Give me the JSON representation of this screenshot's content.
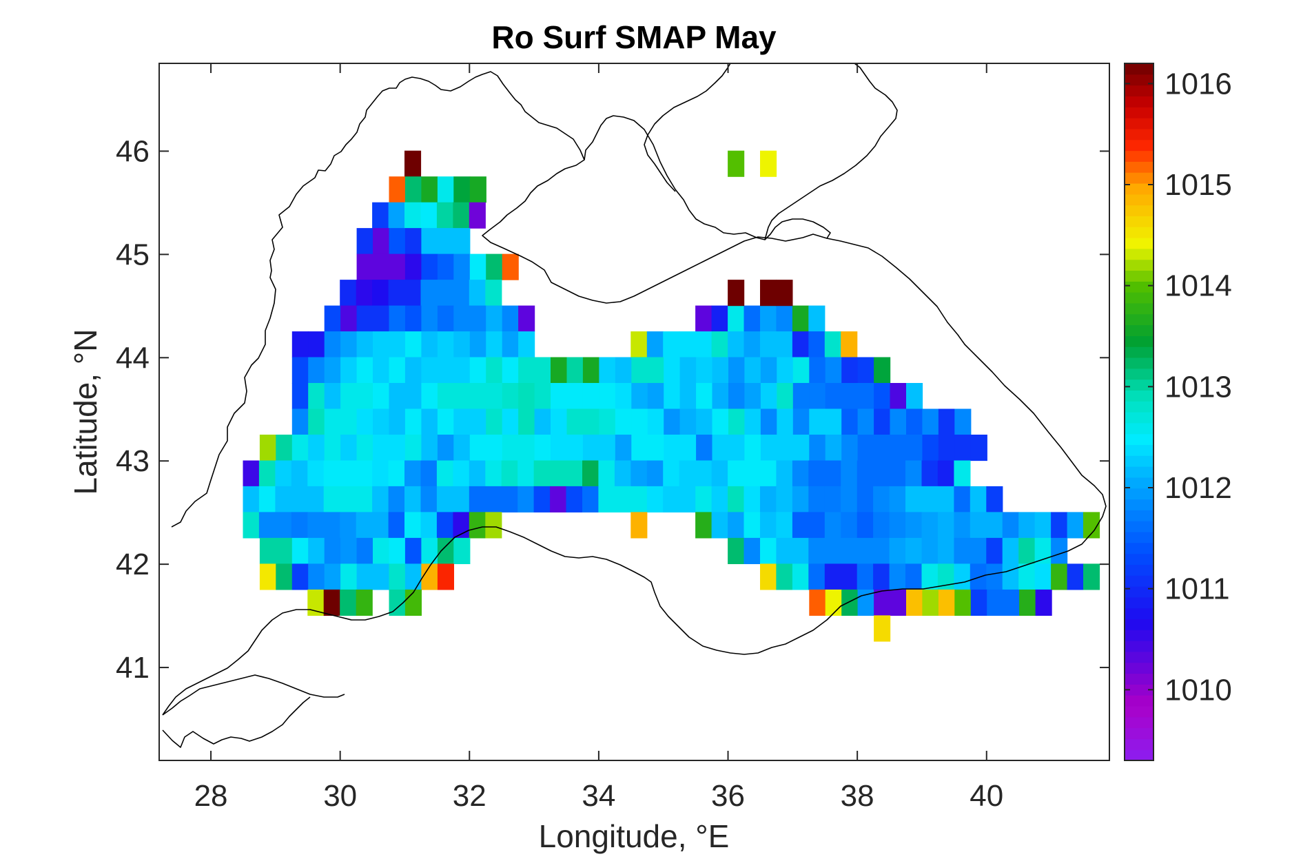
{
  "chart_data": {
    "type": "heatmap",
    "title": "Ro Surf SMAP May",
    "xlabel": "Longitude, °E",
    "ylabel": "Latitude, °N",
    "xlim": [
      27.2,
      41.9
    ],
    "ylim": [
      40.1,
      46.85
    ],
    "xticks": [
      "28",
      "30",
      "32",
      "34",
      "36",
      "38",
      "40"
    ],
    "xtick_values": [
      28,
      30,
      32,
      34,
      36,
      38,
      40
    ],
    "yticks": [
      "41",
      "42",
      "43",
      "44",
      "45",
      "46"
    ],
    "ytick_values": [
      41,
      42,
      43,
      44,
      45,
      46
    ],
    "colorbar": {
      "ticks": [
        "1010",
        "1011",
        "1012",
        "1013",
        "1014",
        "1015",
        "1016"
      ],
      "tick_values": [
        1010,
        1011,
        1012,
        1013,
        1014,
        1015,
        1016
      ],
      "range": [
        1009.3,
        1016.2
      ]
    },
    "grid": {
      "lon_step": 0.25,
      "lat_step": 0.25
    },
    "rows": [
      {
        "lat": 45.88,
        "lon_start": 31.12,
        "values": [
          1016.2
        ]
      },
      {
        "lat": 45.63,
        "lon_start": 30.88,
        "values": [
          1015.2,
          1013.2,
          1013.6,
          1012.6,
          1013.4,
          1013.6
        ]
      },
      {
        "lat": 45.38,
        "lon_start": 30.62,
        "values": [
          1011.2,
          1012.0,
          1012.6,
          1012.5,
          1013.0,
          1013.2,
          1010.2
        ]
      },
      {
        "lat": 45.13,
        "lon_start": 30.38,
        "values": [
          1011.1,
          1010.3,
          1011.4,
          1011.1,
          1012.2,
          1012.2,
          1012.2
        ]
      },
      {
        "lat": 44.88,
        "lon_start": 30.38,
        "values": [
          1010.3,
          1010.3,
          1010.3,
          1010.6,
          1011.3,
          1011.5,
          1011.8,
          1012.5,
          1013.2,
          1015.2
        ]
      },
      {
        "lat": 44.63,
        "lon_start": 30.12,
        "values": [
          1011.0,
          1010.6,
          1010.7,
          1011.0,
          1011.0,
          1011.8,
          1011.8,
          1011.8,
          1012.2,
          1012.8
        ]
      },
      {
        "lat": 44.38,
        "lon_start": 29.88,
        "values": [
          1011.3,
          1010.4,
          1011.1,
          1011.1,
          1011.6,
          1011.4,
          1011.8,
          1011.6,
          1011.8,
          1011.8,
          1012.1,
          1011.8,
          1010.3
        ]
      },
      {
        "lat": 44.38,
        "lon_start": 35.62,
        "values": [
          1010.3,
          1010.9,
          1012.6,
          1011.6,
          1012.0,
          1011.8,
          1013.6,
          1012.2
        ]
      },
      {
        "lat": 44.13,
        "lon_start": 29.38,
        "values": [
          1010.8,
          1010.8,
          1011.8,
          1012.0,
          1012.2,
          1012.3,
          1012.3,
          1012.5,
          1012.2,
          1012.3,
          1012.2,
          1012.0,
          1012.3,
          1012.0,
          1012.3
        ]
      },
      {
        "lat": 44.13,
        "lon_start": 34.62,
        "values": [
          1014.3,
          1012.0,
          1012.4,
          1012.4,
          1012.4,
          1012.8,
          1012.2,
          1012.0,
          1012.2,
          1012.2,
          1011.0,
          1011.5,
          1012.8,
          1014.9
        ]
      },
      {
        "lat": 43.88,
        "lon_start": 29.38,
        "values": [
          1011.3,
          1011.8,
          1012.0,
          1012.3,
          1012.5,
          1012.3,
          1012.5,
          1012.2,
          1012.3,
          1012.3,
          1012.3,
          1012.5,
          1012.8,
          1012.5,
          1012.8,
          1012.8,
          1013.6,
          1013.0,
          1013.6,
          1012.3,
          1012.2,
          1012.8,
          1012.8,
          1012.4,
          1012.2,
          1012.3,
          1012.2,
          1011.9,
          1012.2,
          1012.0,
          1012.3,
          1012.6,
          1011.6,
          1011.8,
          1011.1,
          1011.2,
          1013.4
        ]
      },
      {
        "lat": 43.63,
        "lon_start": 29.38,
        "values": [
          1011.3,
          1012.8,
          1012.2,
          1012.6,
          1012.6,
          1012.5,
          1012.2,
          1012.2,
          1012.5,
          1012.7,
          1012.7,
          1012.7,
          1012.7,
          1012.8,
          1012.9,
          1012.8,
          1012.5,
          1012.5,
          1012.5,
          1012.5,
          1012.4,
          1012.1,
          1012.0,
          1012.4,
          1012.2,
          1012.5,
          1012.1,
          1011.8,
          1012.0,
          1012.3,
          1012.8,
          1011.7,
          1011.7,
          1011.6,
          1011.6,
          1011.6,
          1011.4,
          1010.4,
          1012.2
        ]
      },
      {
        "lat": 43.38,
        "lon_start": 29.38,
        "values": [
          1011.8,
          1012.9,
          1012.6,
          1012.6,
          1012.4,
          1012.3,
          1012.2,
          1012.5,
          1012.2,
          1012.5,
          1012.3,
          1012.3,
          1012.8,
          1012.4,
          1012.9,
          1012.2,
          1012.4,
          1012.8,
          1012.8,
          1012.7,
          1012.5,
          1012.5,
          1012.4,
          1011.9,
          1012.1,
          1012.2,
          1012.5,
          1012.8,
          1012.3,
          1011.8,
          1012.3,
          1011.8,
          1012.3,
          1012.3,
          1011.5,
          1011.8,
          1011.2,
          1011.8,
          1011.5,
          1011.8,
          1011.1,
          1011.8
        ]
      },
      {
        "lat": 43.13,
        "lon_start": 28.88,
        "values": [
          1014.2,
          1013.0,
          1012.6,
          1012.3,
          1012.6,
          1012.3,
          1012.6,
          1012.4,
          1012.4,
          1012.6,
          1012.2,
          1011.9,
          1012.2,
          1012.5,
          1012.5,
          1012.6,
          1012.6,
          1012.5,
          1012.4,
          1012.4,
          1012.3,
          1012.3,
          1012.0,
          1012.5,
          1012.5,
          1012.4,
          1012.4,
          1011.7,
          1012.3,
          1012.3,
          1012.5,
          1012.3,
          1012.3,
          1012.3,
          1011.8,
          1012.1,
          1011.8,
          1011.6,
          1011.6,
          1011.6,
          1011.6,
          1011.3,
          1011.1,
          1011.1,
          1011.1
        ]
      },
      {
        "lat": 42.88,
        "lon_start": 28.62,
        "values": [
          1010.5,
          1012.9,
          1012.3,
          1012.2,
          1012.4,
          1012.5,
          1012.5,
          1012.5,
          1012.4,
          1012.5,
          1011.9,
          1011.7,
          1012.6,
          1012.4,
          1012.2,
          1012.6,
          1012.8,
          1012.6,
          1012.9,
          1012.9,
          1012.9,
          1013.3,
          1012.6,
          1012.2,
          1012.0,
          1011.9,
          1012.4,
          1012.3,
          1012.3,
          1012.2,
          1012.5,
          1012.5,
          1012.5,
          1012.2,
          1011.8,
          1011.6,
          1011.6,
          1011.8,
          1011.6,
          1011.6,
          1011.6,
          1011.8,
          1011.1,
          1010.9,
          1012.6
        ]
      },
      {
        "lat": 42.63,
        "lon_start": 28.62,
        "values": [
          1012.2,
          1012.5,
          1012.2,
          1012.2,
          1012.2,
          1012.6,
          1012.6,
          1012.6,
          1012.2,
          1011.8,
          1012.2,
          1011.8,
          1012.2,
          1012.2,
          1011.6,
          1011.6,
          1011.6,
          1011.8,
          1011.3,
          1010.3,
          1011.3,
          1011.6,
          1012.6,
          1012.6,
          1012.6,
          1012.4,
          1012.3,
          1012.3,
          1012.6,
          1012.3,
          1012.9,
          1012.4,
          1012.1,
          1012.2,
          1012.0,
          1011.7,
          1011.7,
          1011.8,
          1011.6,
          1011.8,
          1011.9,
          1012.2,
          1012.2,
          1012.2,
          1011.6,
          1012.2,
          1011.2
        ]
      },
      {
        "lat": 42.38,
        "lon_start": 28.62,
        "values": [
          1012.8,
          1011.8,
          1011.8,
          1011.7,
          1011.8,
          1011.8,
          1011.9,
          1012.1,
          1012.1,
          1011.5,
          1012.5,
          1012.3,
          1011.3,
          1010.6,
          1013.8,
          1014.2
        ]
      },
      {
        "lat": 42.38,
        "lon_start": 34.62,
        "values": [
          1014.9
        ]
      },
      {
        "lat": 42.38,
        "lon_start": 35.62,
        "values": [
          1013.7,
          1012.2,
          1012.0,
          1012.5,
          1012.2,
          1012.3,
          1011.5,
          1011.5,
          1011.8,
          1011.7,
          1011.5,
          1011.7,
          1011.8,
          1011.9,
          1012.0,
          1012.1,
          1011.9,
          1012.1,
          1012.1,
          1011.8,
          1012.1,
          1012.2,
          1011.2,
          1012.0,
          1014.0
        ]
      },
      {
        "lat": 42.13,
        "lon_start": 28.88,
        "values": [
          1013.0,
          1013.0,
          1012.5,
          1012.2,
          1011.8,
          1011.9,
          1011.7,
          1012.6,
          1012.5,
          1011.4,
          1012.6,
          1013.2,
          1012.8
        ]
      },
      {
        "lat": 42.13,
        "lon_start": 36.12,
        "values": [
          1013.2,
          1011.8,
          1012.5,
          1012.2,
          1012.2,
          1011.8,
          1011.8,
          1011.8,
          1011.8,
          1011.8,
          1012.0,
          1012.1,
          1012.0,
          1012.1,
          1011.8,
          1011.8,
          1011.2,
          1012.2,
          1013.0,
          1012.6,
          1011.8
        ]
      },
      {
        "lat": 41.88,
        "lon_start": 28.88,
        "values": [
          1014.5,
          1013.2,
          1011.2,
          1011.8,
          1012.0,
          1012.6,
          1012.2,
          1012.2,
          1012.8,
          1012.2,
          1014.9,
          1015.4
        ]
      },
      {
        "lat": 41.88,
        "lon_start": 36.62,
        "values": [
          1014.6,
          1013.0,
          1012.6,
          1011.6,
          1010.9,
          1010.9,
          1011.6,
          1011.1,
          1011.8,
          1011.6,
          1012.6,
          1012.8,
          1012.3,
          1011.6,
          1011.7,
          1012.2,
          1012.6,
          1012.4,
          1013.8,
          1011.1,
          1013.2
        ]
      },
      {
        "lat": 41.63,
        "lon_start": 29.62,
        "values": [
          1014.3,
          1016.2,
          1013.2,
          1013.8
        ]
      },
      {
        "lat": 41.63,
        "lon_start": 30.88,
        "values": [
          1013.0,
          1013.9
        ]
      },
      {
        "lat": 41.63,
        "lon_start": 37.38,
        "values": [
          1015.2,
          1014.4,
          1013.3,
          1011.9,
          1010.3,
          1010.3,
          1014.8,
          1014.2,
          1014.8,
          1014.0,
          1011.2,
          1011.6,
          1011.6,
          1013.7,
          1010.6
        ]
      },
      {
        "lat": 41.38,
        "lon_start": 38.38,
        "values": [
          1014.6
        ]
      },
      {
        "lat": 45.88,
        "lon_start": 36.12,
        "values": [
          1014.0
        ]
      },
      {
        "lat": 45.88,
        "lon_start": 36.62,
        "values": [
          1014.4
        ]
      },
      {
        "lat": 44.63,
        "lon_start": 36.12,
        "values": [
          1016.2
        ]
      },
      {
        "lat": 44.63,
        "lon_start": 36.62,
        "values": [
          1016.2,
          1016.2
        ]
      }
    ]
  }
}
